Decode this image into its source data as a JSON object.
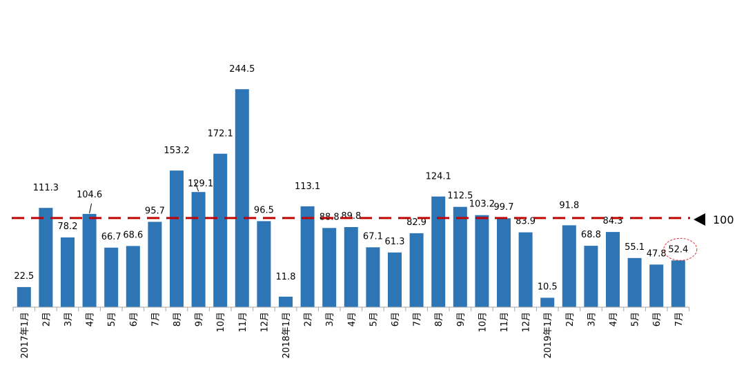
{
  "chart_data": {
    "type": "bar",
    "categories": [
      "2017年1月",
      "2月",
      "3月",
      "4月",
      "5月",
      "6月",
      "7月",
      "8月",
      "9月",
      "10月",
      "11月",
      "12月",
      "2018年1月",
      "2月",
      "3月",
      "4月",
      "5月",
      "6月",
      "7月",
      "8月",
      "9月",
      "10月",
      "11月",
      "12月",
      "2019年1月",
      "2月",
      "3月",
      "4月",
      "5月",
      "6月",
      "7月"
    ],
    "values": [
      22.5,
      111.3,
      78.2,
      104.6,
      66.7,
      68.6,
      95.7,
      153.2,
      129.1,
      172.1,
      244.5,
      96.5,
      11.8,
      113.1,
      88.8,
      89.8,
      67.1,
      61.3,
      82.9,
      124.1,
      112.5,
      103.2,
      99.7,
      83.9,
      10.5,
      91.8,
      68.8,
      84.3,
      55.1,
      47.8,
      52.4
    ],
    "value_labels": [
      "22.5",
      "111.3",
      "78.2",
      "104.6",
      "66.7",
      "68.6",
      "95.7",
      "153.2",
      "129.1",
      "172.1",
      "244.5",
      "96.5",
      "11.8",
      "113.1",
      "88.8",
      "89.8",
      "67.1",
      "61.3",
      "82.9",
      "124.1",
      "112.5",
      "103.2",
      "99.7",
      "83.9",
      "10.5",
      "91.8",
      "68.8",
      "84.3",
      "55.1",
      "47.8",
      "52.4"
    ],
    "ylim": [
      0,
      250
    ],
    "reference_line": {
      "value": 100,
      "label": "100",
      "color": "#c00000",
      "style": "dashed"
    },
    "highlight_index": 30,
    "bar_color": "#2e75b6",
    "grid": false,
    "legend": "none"
  }
}
